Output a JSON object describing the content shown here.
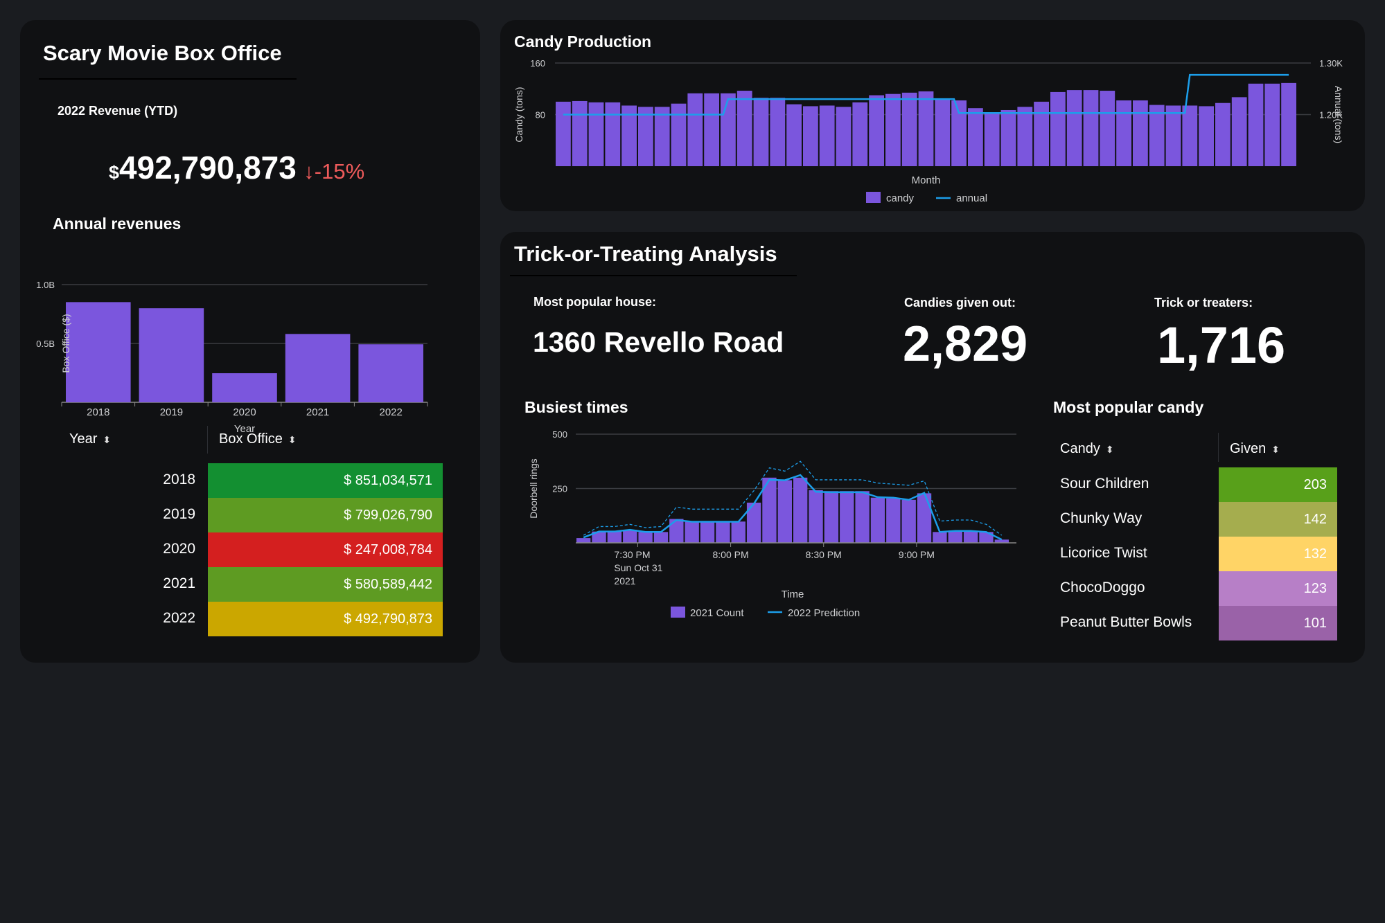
{
  "box_office": {
    "title": "Scary Movie Box Office",
    "revenue_label": "2022 Revenue (YTD)",
    "currency": "$",
    "revenue_value": "492,790,873",
    "trend_arrow": "↓",
    "trend_value": "-15%",
    "trend_color": "#ee5b5b",
    "annual_title": "Annual revenues",
    "table": {
      "col_year": "Year",
      "col_box": "Box Office",
      "rows": [
        {
          "year": "2018",
          "value": "$ 851,034,571",
          "color": "#138f31"
        },
        {
          "year": "2019",
          "value": "$ 799,026,790",
          "color": "#5e9b22"
        },
        {
          "year": "2020",
          "value": "$ 247,008,784",
          "color": "#d41f1f"
        },
        {
          "year": "2021",
          "value": "$ 580,589,442",
          "color": "#5e9b22"
        },
        {
          "year": "2022",
          "value": "$ 492,790,873",
          "color": "#cba700"
        }
      ]
    }
  },
  "candy_production": {
    "title": "Candy Production"
  },
  "trick": {
    "title": "Trick-or-Treating Analysis",
    "house_label": "Most popular house:",
    "house_value": "1360 Revello Road",
    "candies_label": "Candies given out:",
    "candies_value": "2,829",
    "treaters_label": "Trick or treaters:",
    "treaters_value": "1,716",
    "busiest_title": "Busiest times",
    "candy_title": "Most popular candy",
    "candy_table": {
      "col_candy": "Candy",
      "col_given": "Given",
      "rows": [
        {
          "name": "Sour Children",
          "given": "203",
          "color": "#58a01a"
        },
        {
          "name": "Chunky Way",
          "given": "142",
          "color": "#a5ad4e"
        },
        {
          "name": "Licorice Twist",
          "given": "132",
          "color": "#ffd466"
        },
        {
          "name": "ChocoDoggo",
          "given": "123",
          "color": "#b77fc7"
        },
        {
          "name": "Peanut Butter Bowls",
          "given": "101",
          "color": "#9a62a8"
        }
      ]
    }
  },
  "colors": {
    "bar": "#7b56dd",
    "line": "#1c9eea"
  },
  "chart_data": [
    {
      "id": "annual_revenues",
      "type": "bar",
      "title": "Annual revenues",
      "categories": [
        "2018",
        "2019",
        "2020",
        "2021",
        "2022"
      ],
      "values": [
        851034571,
        799026790,
        247008784,
        580589442,
        492790873
      ],
      "xlabel": "Year",
      "ylabel": "Box Office ($)",
      "ylim": [
        0,
        1000000000
      ],
      "yticks": [
        {
          "v": 500000000,
          "label": "0.5B"
        },
        {
          "v": 1000000000,
          "label": "1.0B"
        }
      ],
      "grid": true
    },
    {
      "id": "candy_production",
      "type": "bar",
      "title": "Candy Production",
      "xlabel": "Month",
      "ylabel": "Candy (tons)",
      "y2label": "Annual (tons)",
      "ylim": [
        0,
        160
      ],
      "yticks": [
        {
          "v": 80,
          "label": "80"
        },
        {
          "v": 160,
          "label": "160"
        }
      ],
      "y2lim": [
        1100,
        1300
      ],
      "y2ticks": [
        {
          "v": 1200,
          "label": "1.20K"
        },
        {
          "v": 1300,
          "label": "1.30K"
        }
      ],
      "series": [
        {
          "name": "candy",
          "type": "bar",
          "values": [
            100,
            101,
            99,
            99,
            94,
            92,
            92,
            97,
            113,
            113,
            113,
            117,
            106,
            106,
            96,
            93,
            94,
            92,
            99,
            110,
            112,
            114,
            116,
            104,
            102,
            90,
            82,
            87,
            92,
            100,
            115,
            118,
            118,
            117,
            102,
            102,
            95,
            94,
            94,
            93,
            98,
            107,
            128,
            128,
            129
          ]
        },
        {
          "name": "annual",
          "type": "line",
          "values": [
            1200,
            1200,
            1200,
            1200,
            1200,
            1200,
            1200,
            1200,
            1200,
            1200,
            1230,
            1230,
            1230,
            1230,
            1230,
            1230,
            1230,
            1230,
            1230,
            1230,
            1230,
            1230,
            1230,
            1230,
            1203,
            1203,
            1203,
            1203,
            1203,
            1203,
            1203,
            1203,
            1203,
            1203,
            1203,
            1203,
            1203,
            1203,
            1277,
            1277,
            1277,
            1277,
            1277,
            1277,
            1277
          ]
        }
      ],
      "legend": "bottom"
    },
    {
      "id": "busiest_times",
      "type": "bar",
      "title": "Busiest times",
      "xlabel": "Time",
      "ylabel": "Doorbell rings",
      "ylim": [
        0,
        500
      ],
      "yticks": [
        {
          "v": 250,
          "label": "250"
        },
        {
          "v": 500,
          "label": "500"
        }
      ],
      "xticks": [
        "7:30 PM\nSun Oct 31\n2021",
        "8:00 PM",
        "8:30 PM",
        "9:00 PM"
      ],
      "series": [
        {
          "name": "2021 Count",
          "type": "bar",
          "values": [
            22,
            52,
            52,
            60,
            50,
            50,
            110,
            98,
            98,
            98,
            98,
            185,
            300,
            288,
            300,
            242,
            238,
            238,
            238,
            208,
            205,
            198,
            228,
            50,
            55,
            55,
            50,
            15
          ]
        },
        {
          "name": "2022 Prediction",
          "type": "line",
          "values": [
            25,
            52,
            52,
            60,
            50,
            50,
            105,
            97,
            97,
            97,
            97,
            180,
            290,
            288,
            312,
            235,
            233,
            233,
            233,
            210,
            208,
            198,
            230,
            50,
            55,
            55,
            50,
            15
          ]
        },
        {
          "name": "2022 Prediction upper",
          "type": "band",
          "values": [
            35,
            75,
            75,
            85,
            70,
            75,
            165,
            155,
            155,
            155,
            155,
            240,
            345,
            330,
            375,
            290,
            290,
            290,
            290,
            275,
            270,
            265,
            285,
            100,
            105,
            105,
            85,
            35
          ]
        }
      ],
      "legend": "bottom"
    }
  ]
}
